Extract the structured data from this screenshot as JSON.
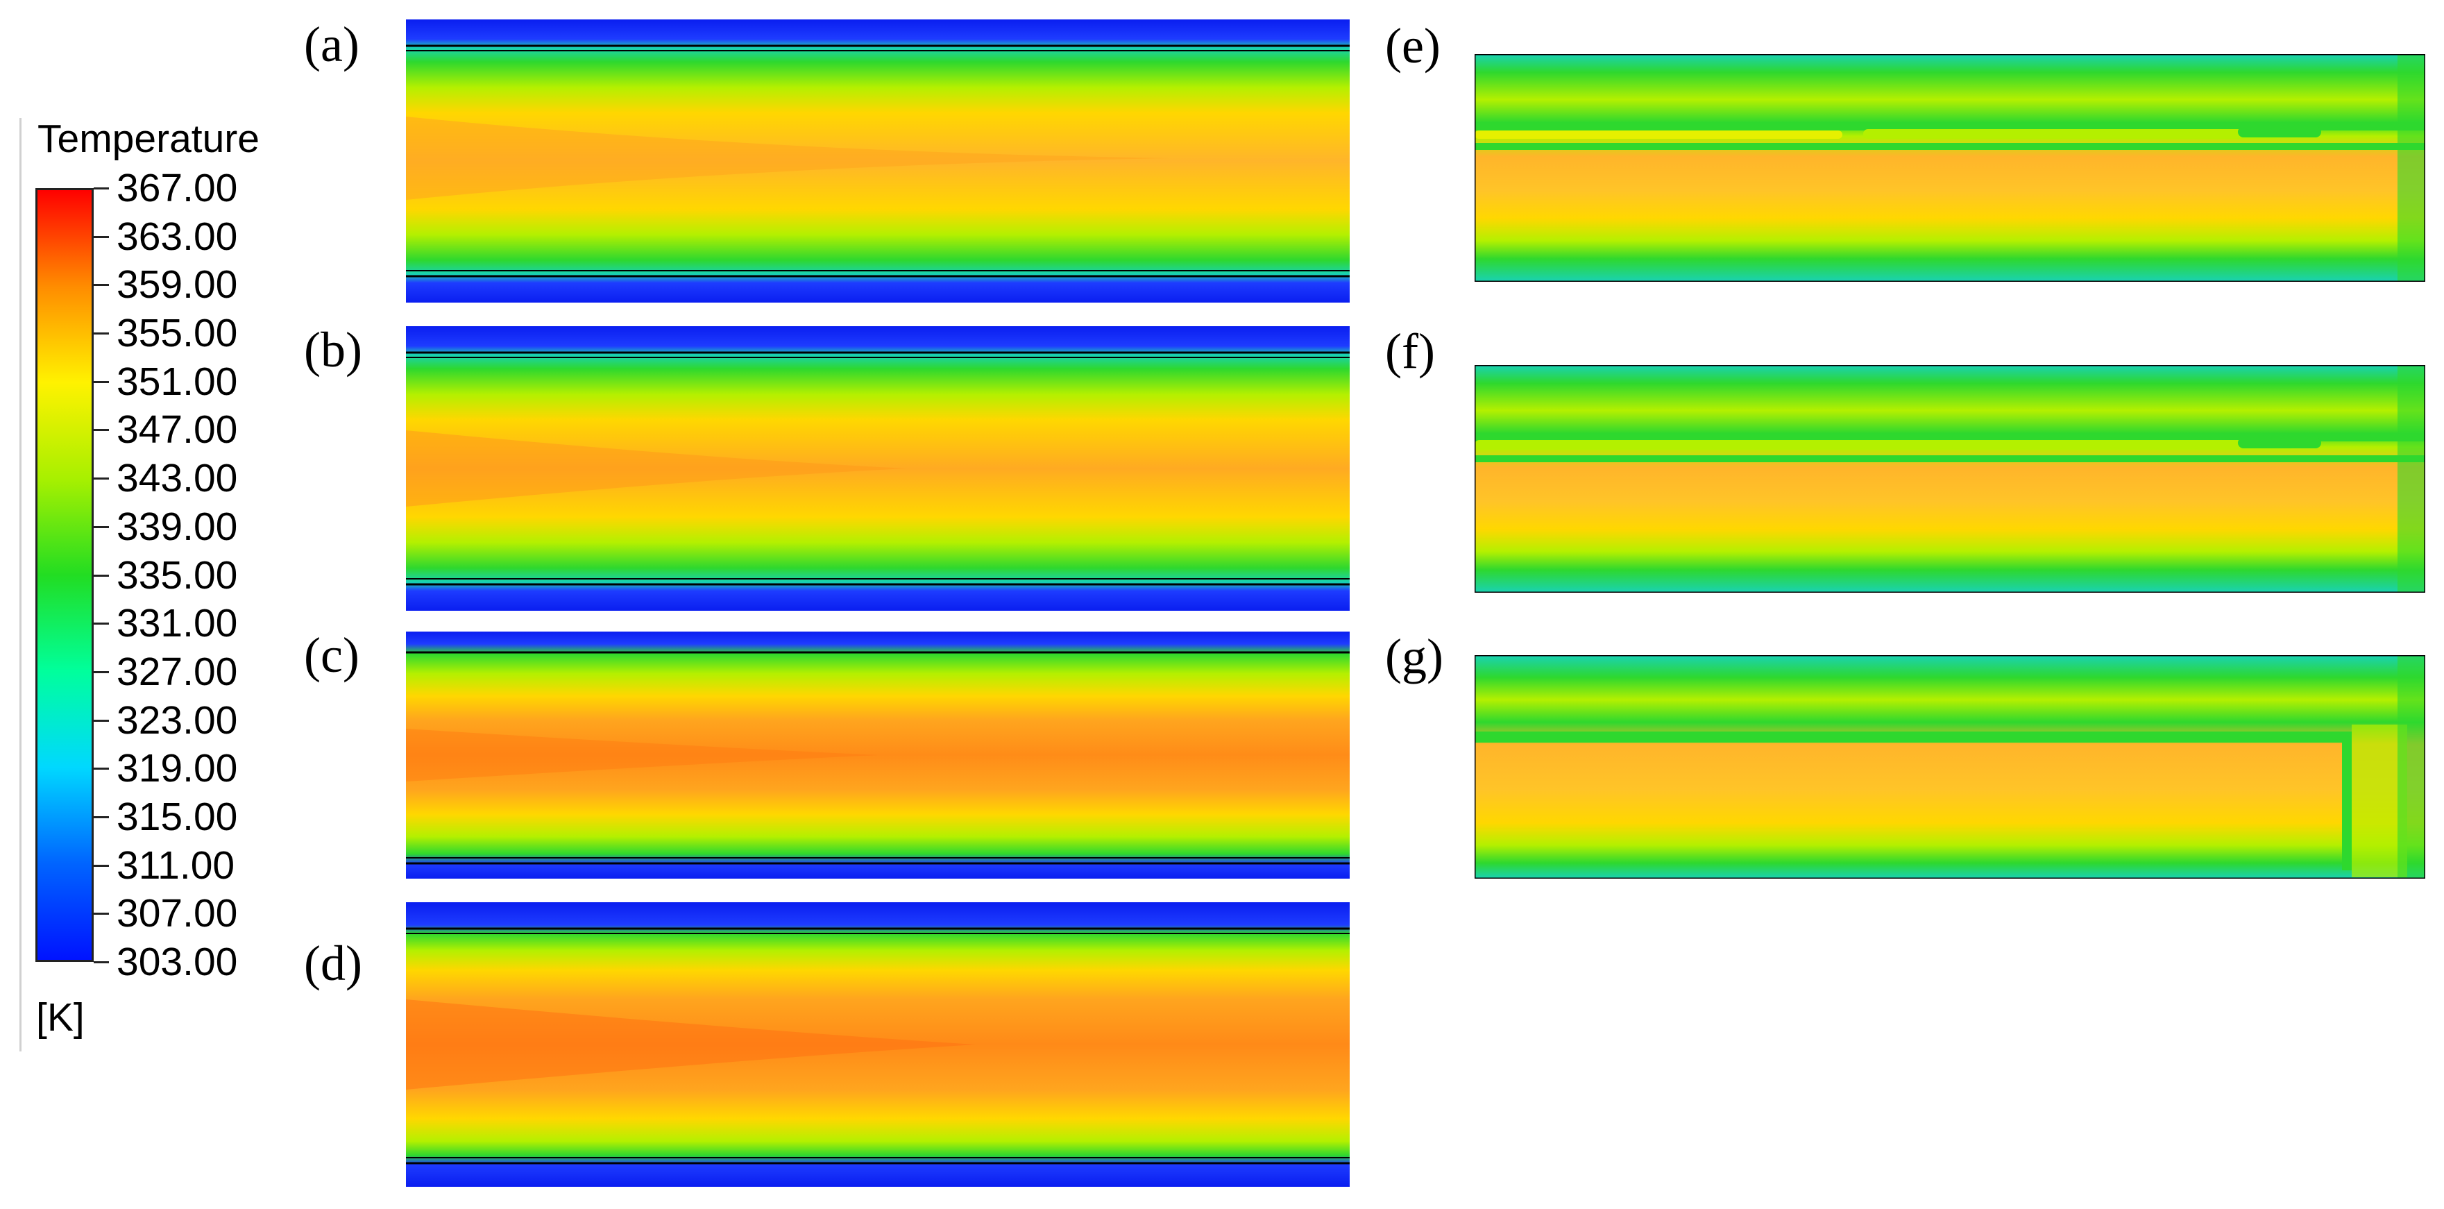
{
  "legend": {
    "title": "Temperature",
    "unit": "[K]",
    "min": 303.0,
    "max": 367.0,
    "ticks": [
      "367.00",
      "363.00",
      "359.00",
      "355.00",
      "351.00",
      "347.00",
      "343.00",
      "339.00",
      "335.00",
      "331.00",
      "327.00",
      "323.00",
      "319.00",
      "315.00",
      "311.00",
      "307.00",
      "303.00"
    ]
  },
  "panels": [
    {
      "label": "(a)"
    },
    {
      "label": "(b)"
    },
    {
      "label": "(c)"
    },
    {
      "label": "(d)"
    },
    {
      "label": "(e)"
    },
    {
      "label": "(f)"
    },
    {
      "label": "(g)"
    }
  ],
  "colors": {
    "cold": "#0a1ef0",
    "cool": "#19d2b4",
    "green": "#2ed82e",
    "lime": "#b4f000",
    "yellow": "#ffd700",
    "orange": "#ffa51e",
    "hot": "#ff7a12",
    "border": "#000000"
  }
}
